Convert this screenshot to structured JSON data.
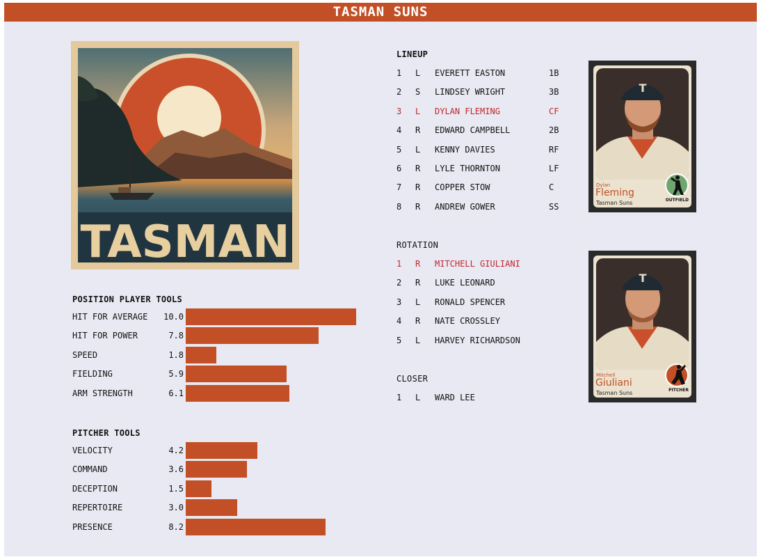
{
  "header": {
    "title": "TASMAN SUNS"
  },
  "poster": {
    "text": "TASMAN"
  },
  "position_tools": {
    "title": "POSITION PLAYER TOOLS",
    "items": [
      {
        "name": "HIT FOR AVERAGE",
        "value": "10.0",
        "score": 10.0
      },
      {
        "name": "HIT FOR POWER",
        "value": "7.8",
        "score": 7.8
      },
      {
        "name": "SPEED",
        "value": "1.8",
        "score": 1.8
      },
      {
        "name": "FIELDING",
        "value": "5.9",
        "score": 5.9
      },
      {
        "name": "ARM STRENGTH",
        "value": "6.1",
        "score": 6.1
      }
    ]
  },
  "pitcher_tools": {
    "title": "PITCHER TOOLS",
    "items": [
      {
        "name": "VELOCITY",
        "value": "4.2",
        "score": 4.2
      },
      {
        "name": "COMMAND",
        "value": "3.6",
        "score": 3.6
      },
      {
        "name": "DECEPTION",
        "value": "1.5",
        "score": 1.5
      },
      {
        "name": "REPERTOIRE",
        "value": "3.0",
        "score": 3.0
      },
      {
        "name": "PRESENCE",
        "value": "8.2",
        "score": 8.2
      }
    ]
  },
  "lineup": {
    "title": "LINEUP",
    "rows": [
      {
        "num": "1",
        "hand": "L",
        "name": "EVERETT EASTON",
        "pos": "1B",
        "highlight": false
      },
      {
        "num": "2",
        "hand": "S",
        "name": "LINDSEY WRIGHT",
        "pos": "3B",
        "highlight": false
      },
      {
        "num": "3",
        "hand": "L",
        "name": "DYLAN FLEMING",
        "pos": "CF",
        "highlight": true
      },
      {
        "num": "4",
        "hand": "R",
        "name": "EDWARD CAMPBELL",
        "pos": "2B",
        "highlight": false
      },
      {
        "num": "5",
        "hand": "L",
        "name": "KENNY DAVIES",
        "pos": "RF",
        "highlight": false
      },
      {
        "num": "6",
        "hand": "R",
        "name": "LYLE THORNTON",
        "pos": "LF",
        "highlight": false
      },
      {
        "num": "7",
        "hand": "R",
        "name": "COPPER STOW",
        "pos": "C",
        "highlight": false
      },
      {
        "num": "8",
        "hand": "R",
        "name": "ANDREW GOWER",
        "pos": "SS",
        "highlight": false
      }
    ]
  },
  "rotation": {
    "title": "ROTATION",
    "rows": [
      {
        "num": "1",
        "hand": "R",
        "name": "MITCHELL GIULIANI",
        "highlight": true
      },
      {
        "num": "2",
        "hand": "R",
        "name": "LUKE LEONARD",
        "highlight": false
      },
      {
        "num": "3",
        "hand": "L",
        "name": "RONALD SPENCER",
        "highlight": false
      },
      {
        "num": "4",
        "hand": "R",
        "name": "NATE CROSSLEY",
        "highlight": false
      },
      {
        "num": "5",
        "hand": "L",
        "name": "HARVEY RICHARDSON",
        "highlight": false
      }
    ]
  },
  "closer": {
    "title": "CLOSER",
    "rows": [
      {
        "num": "1",
        "hand": "L",
        "name": "WARD LEE",
        "highlight": false
      }
    ]
  },
  "cards": [
    {
      "first": "Dylan",
      "last": "Fleming",
      "team": "Tasman Suns",
      "role": "OUTFIELD",
      "badge_color": "#6fa56f",
      "cap_letter": "T"
    },
    {
      "first": "Mitchell",
      "last": "Giuliani",
      "team": "Tasman Suns",
      "role": "PITCHER",
      "badge_color": "#c24f25",
      "cap_letter": "T"
    }
  ],
  "colors": {
    "accent": "#c24f25",
    "highlight": "#c1272d",
    "panel": "#e8e9f2"
  }
}
